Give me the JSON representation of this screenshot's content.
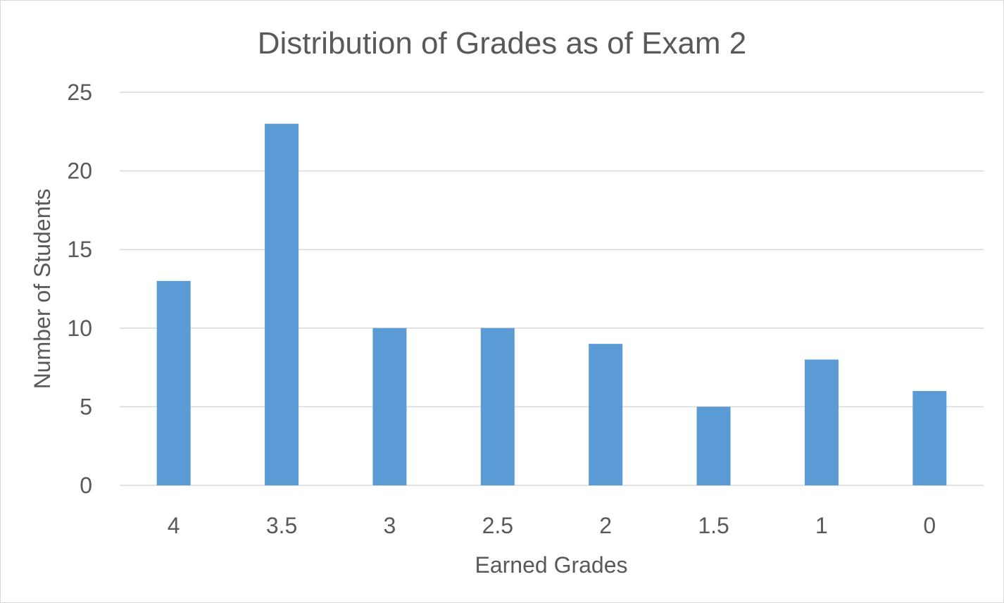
{
  "chart_data": {
    "type": "bar",
    "title": "Distribution of Grades as of Exam 2",
    "xlabel": "Earned Grades",
    "ylabel": "Number of Students",
    "categories": [
      "4",
      "3.5",
      "3",
      "2.5",
      "2",
      "1.5",
      "1",
      "0"
    ],
    "values": [
      13,
      23,
      10,
      10,
      9,
      5,
      8,
      6
    ],
    "ylim": [
      0,
      25
    ],
    "yticks": [
      "0",
      "5",
      "10",
      "15",
      "20",
      "25"
    ],
    "grid": true,
    "legend": "none",
    "colors": {
      "bar": "#5B9BD5",
      "text": "#595959",
      "grid": "#d9d9d9"
    }
  }
}
